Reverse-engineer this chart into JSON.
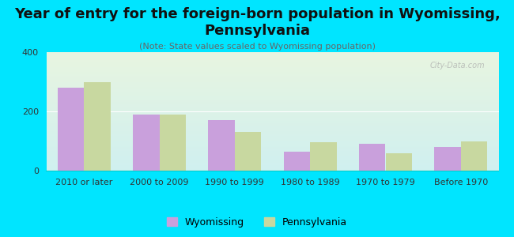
{
  "title": "Year of entry for the foreign-born population in Wyomissing,\nPennsylvania",
  "subtitle": "(Note: State values scaled to Wyomissing population)",
  "categories": [
    "2010 or later",
    "2000 to 2009",
    "1990 to 1999",
    "1980 to 1989",
    "1970 to 1979",
    "Before 1970"
  ],
  "wyomissing": [
    280,
    190,
    170,
    65,
    90,
    80
  ],
  "pennsylvania": [
    300,
    190,
    130,
    95,
    60,
    100
  ],
  "wyomissing_color": "#c9a0dc",
  "pennsylvania_color": "#c8d8a0",
  "background_outer": "#00e5ff",
  "background_plot_top": "#e8f5e0",
  "background_plot_bottom": "#d0f0f0",
  "ylim": [
    0,
    400
  ],
  "yticks": [
    0,
    200,
    400
  ],
  "bar_width": 0.35,
  "title_fontsize": 13,
  "subtitle_fontsize": 8,
  "tick_fontsize": 8,
  "legend_fontsize": 9,
  "watermark": "City-Data.com"
}
